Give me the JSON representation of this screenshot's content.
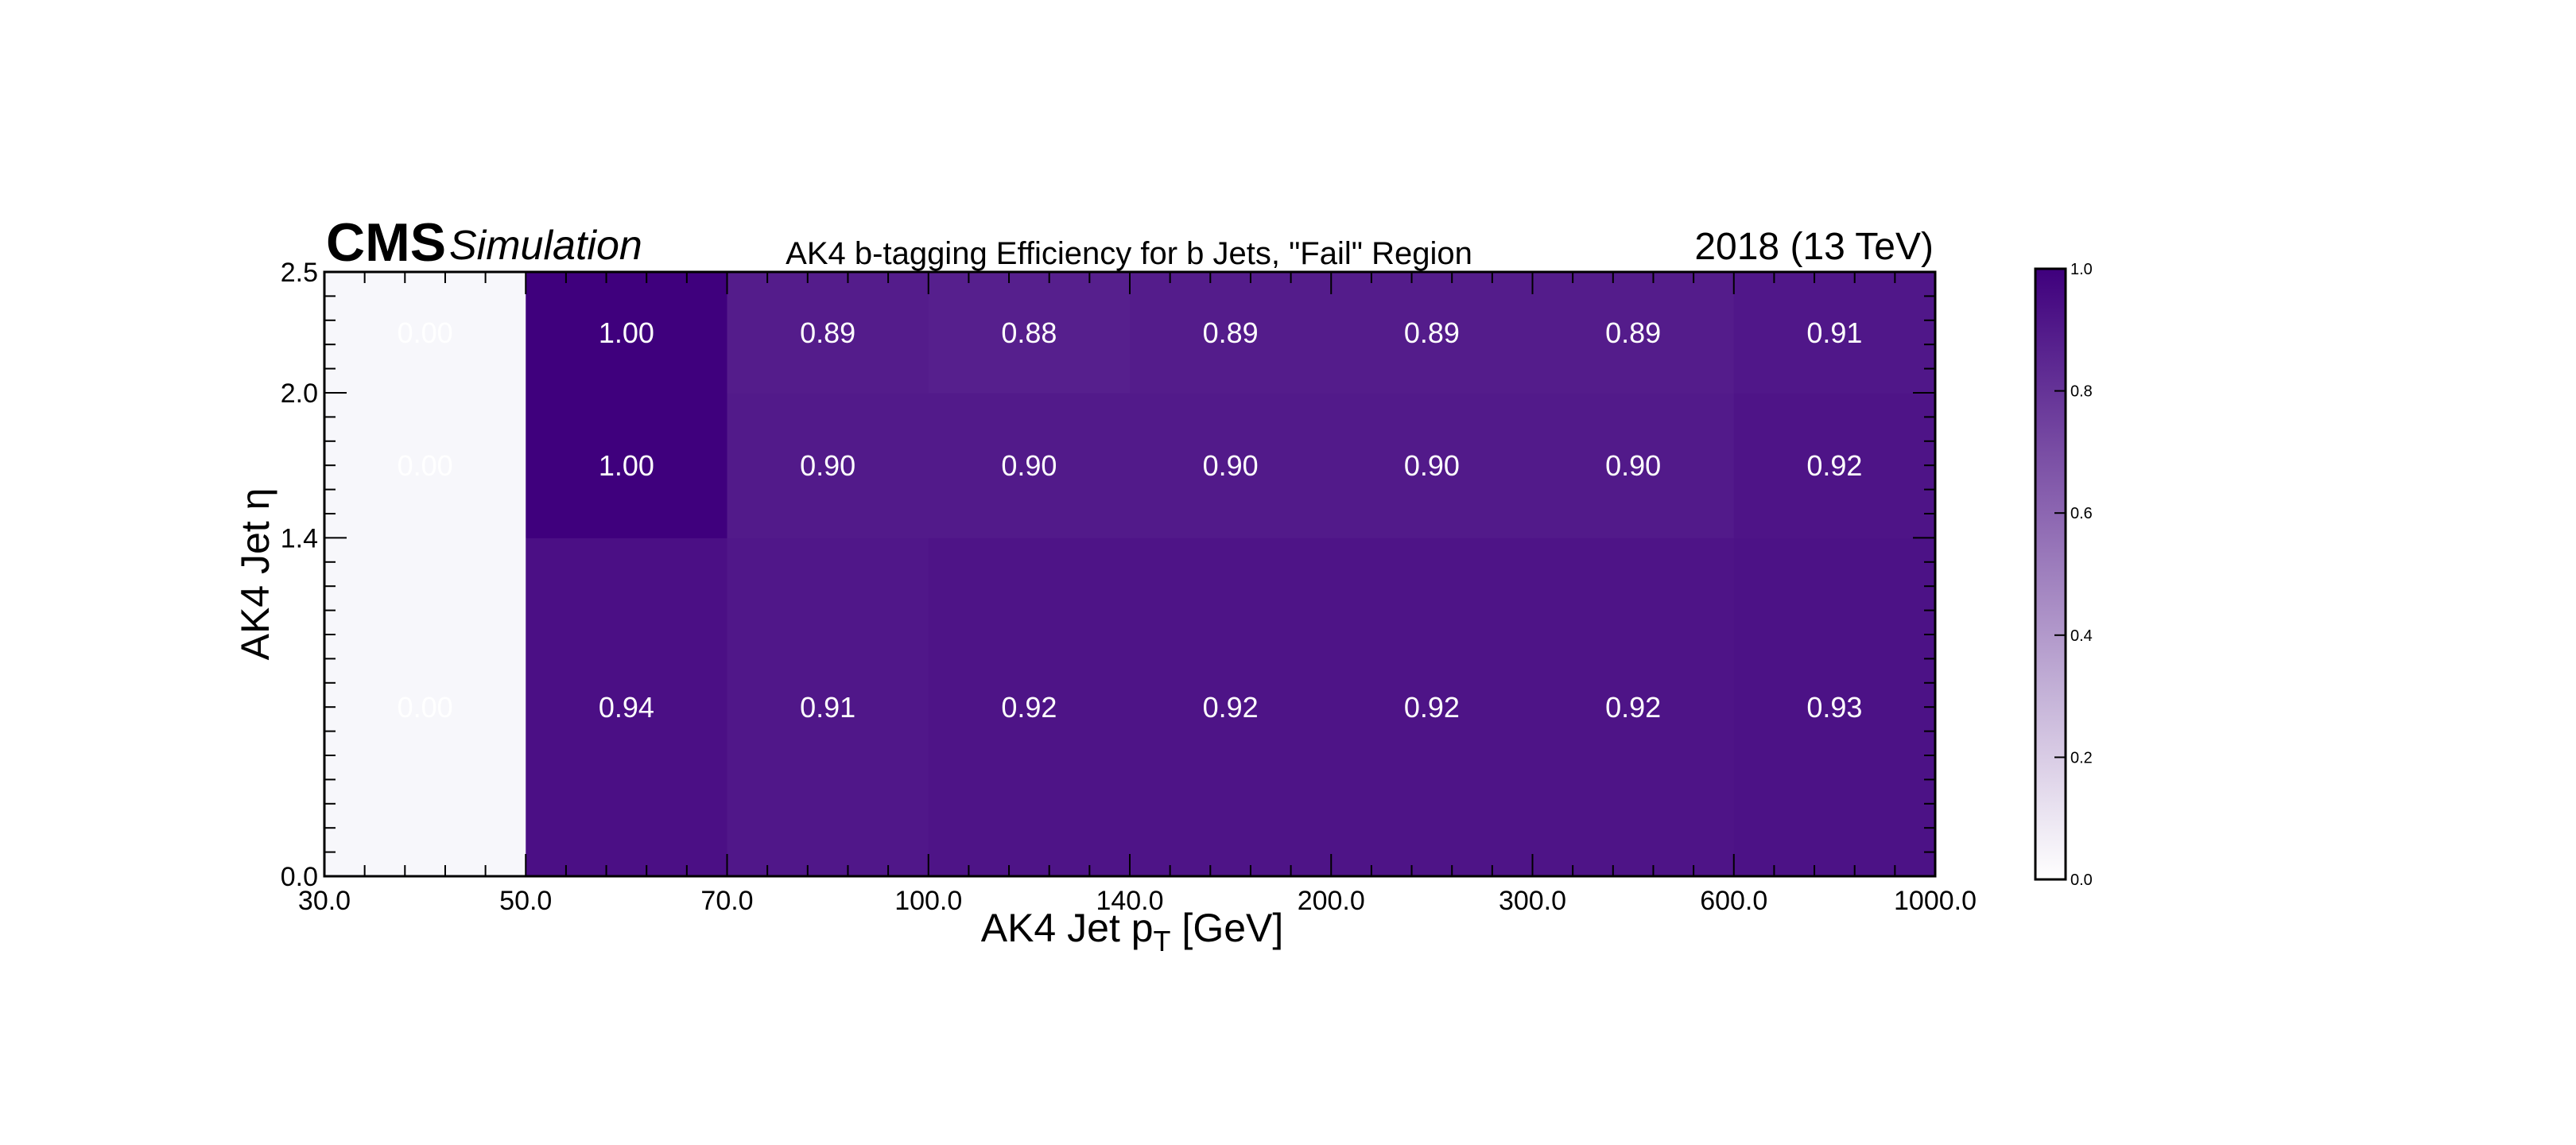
{
  "chart_data": {
    "type": "heatmap",
    "header": {
      "experiment": "CMS",
      "qualifier": "Simulation",
      "title": "AK4 b-tagging Efficiency for b Jets, \"Fail\" Region",
      "lumi": "2018 (13 TeV)"
    },
    "xlabel": {
      "main": "AK4 Jet p",
      "sub": "T",
      "unit": " [GeV]"
    },
    "ylabel": {
      "main": "AK4 Jet η"
    },
    "x_edges": [
      30,
      50,
      70,
      100,
      140,
      200,
      300,
      600,
      1000
    ],
    "y_edges": [
      0,
      1.4,
      2.0,
      2.5
    ],
    "x_tick_labels": [
      "30.0",
      "50.0",
      "70.0",
      "100.0",
      "140.0",
      "200.0",
      "300.0",
      "600.0",
      "1000.0"
    ],
    "y_tick_labels": [
      "0.0",
      "1.4",
      "2.0",
      "2.5"
    ],
    "values": [
      [
        0.0,
        0.94,
        0.91,
        0.92,
        0.92,
        0.92,
        0.92,
        0.93
      ],
      [
        0.0,
        1.0,
        0.9,
        0.9,
        0.9,
        0.9,
        0.9,
        0.92
      ],
      [
        0.0,
        1.0,
        0.89,
        0.88,
        0.89,
        0.89,
        0.89,
        0.91
      ]
    ],
    "cell_labels": [
      [
        "0.00",
        "0.94",
        "0.91",
        "0.92",
        "0.92",
        "0.92",
        "0.92",
        "0.93"
      ],
      [
        "0.00",
        "1.00",
        "0.90",
        "0.90",
        "0.90",
        "0.90",
        "0.90",
        "0.92"
      ],
      [
        "0.00",
        "1.00",
        "0.89",
        "0.88",
        "0.89",
        "0.89",
        "0.89",
        "0.91"
      ]
    ],
    "colorbar": {
      "range": [
        0,
        1
      ],
      "tick_values": [
        0,
        0.2,
        0.4,
        0.6,
        0.8,
        1.0
      ],
      "tick_labels": [
        "0.0",
        "0.2",
        "0.4",
        "0.6",
        "0.8",
        "1.0"
      ],
      "color_low": "#ffffff",
      "color_high": "#3f007d"
    },
    "x_scale": "bin-index (equal-width bins)",
    "grid": false,
    "colormap": "Purples"
  }
}
